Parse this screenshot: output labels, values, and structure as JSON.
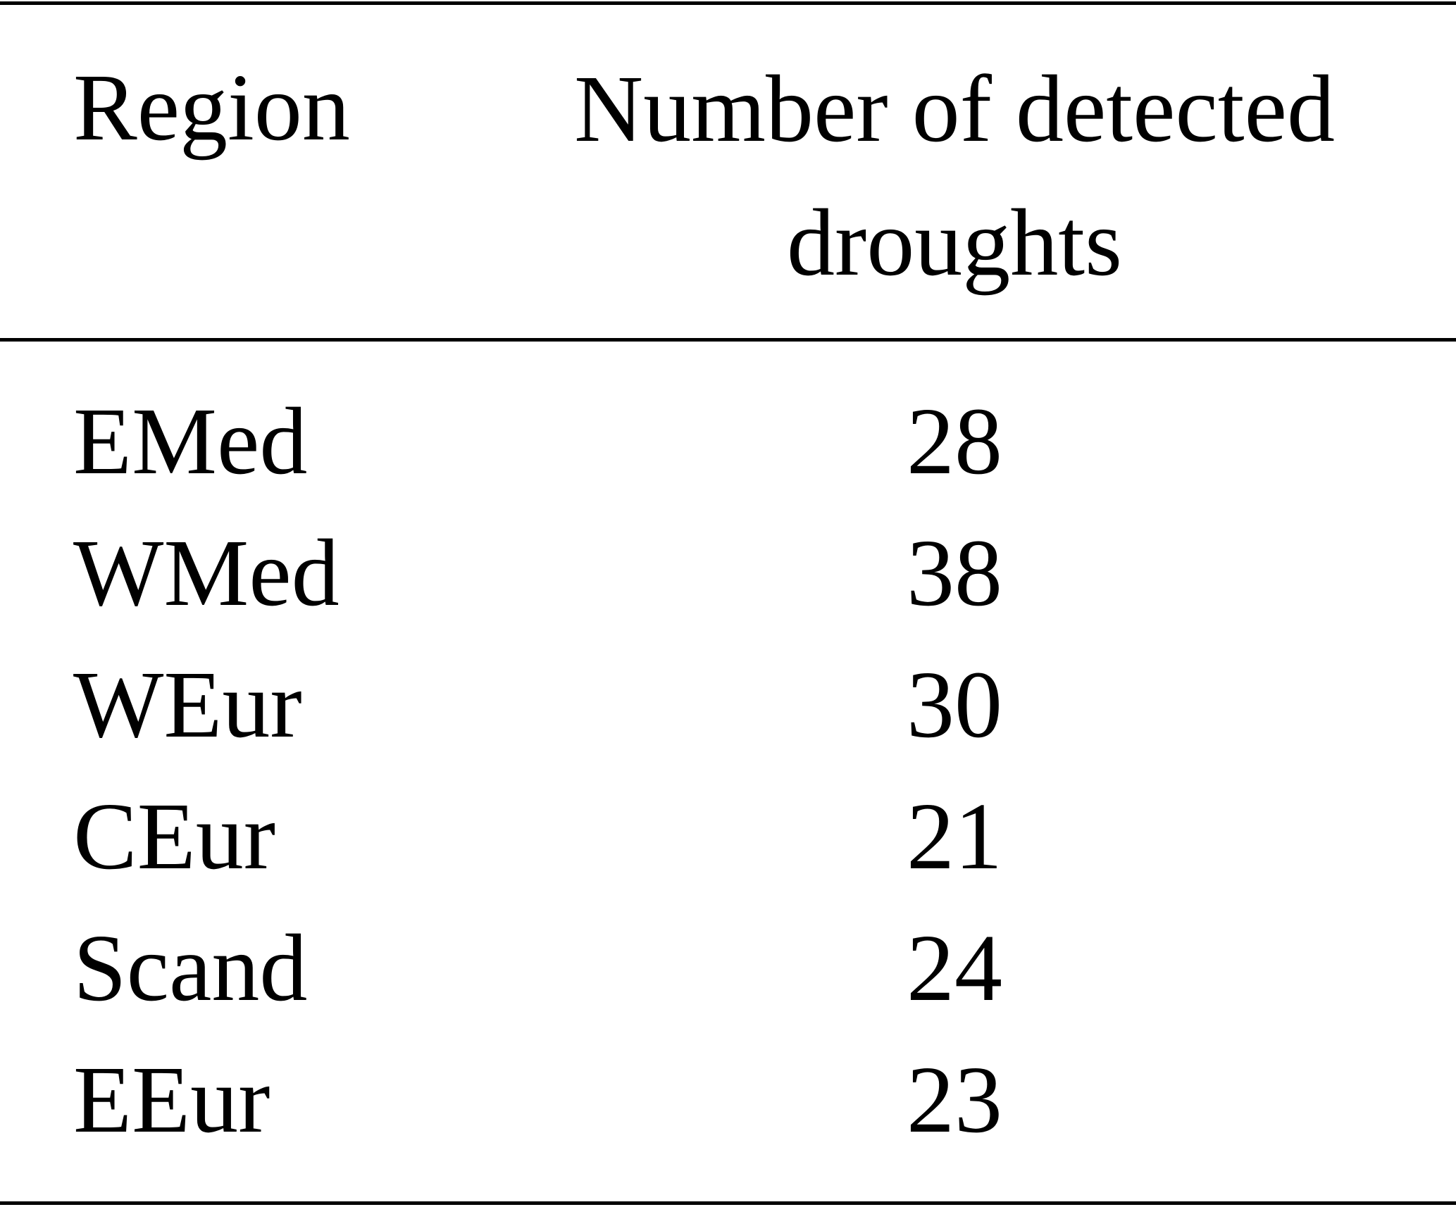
{
  "table": {
    "columns": [
      "Region",
      "Number of detected droughts"
    ],
    "rows": [
      [
        "EMed",
        28
      ],
      [
        "WMed",
        38
      ],
      [
        "WEur",
        30
      ],
      [
        "CEur",
        21
      ],
      [
        "Scand",
        24
      ],
      [
        "EEur",
        23
      ]
    ]
  }
}
